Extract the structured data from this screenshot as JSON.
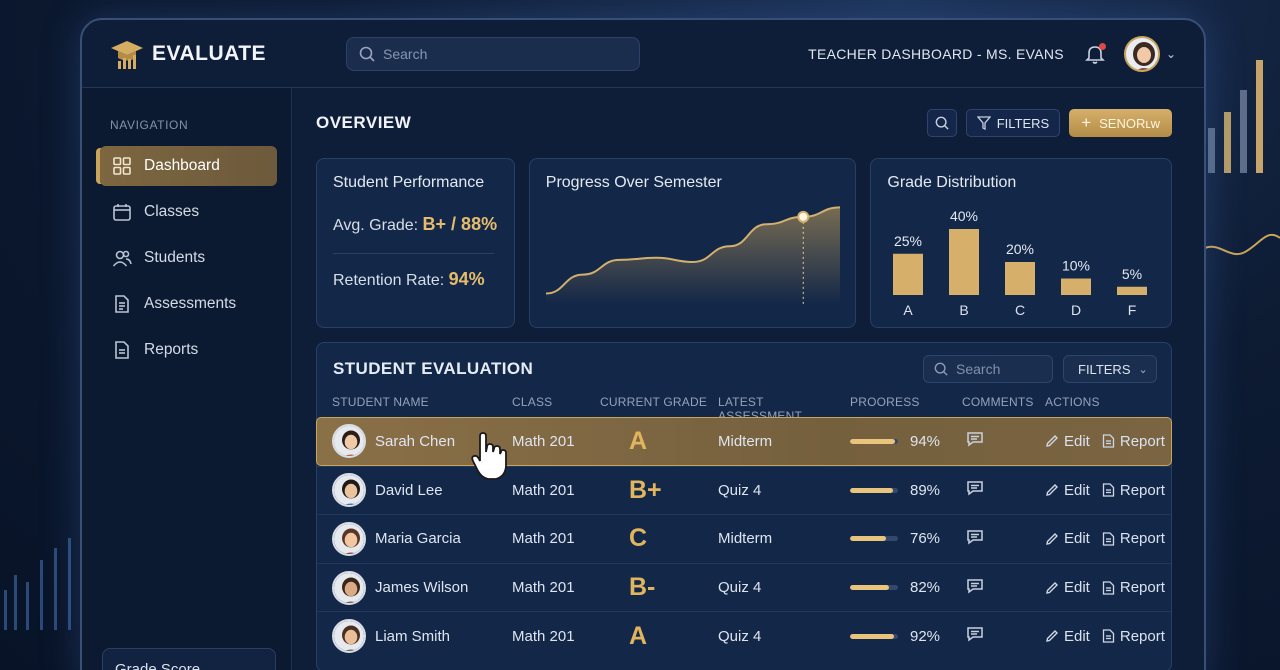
{
  "app": {
    "name": "EVALUATE"
  },
  "header": {
    "search_placeholder": "Search",
    "dashboard_title": "TEACHER DASHBOARD - MS. EVANS",
    "notification_dot": true
  },
  "sidebar": {
    "heading": "NAVIGATION",
    "items": [
      {
        "label": "Dashboard",
        "icon": "grid-icon",
        "active": true
      },
      {
        "label": "Classes",
        "icon": "calendar-icon",
        "active": false
      },
      {
        "label": "Students",
        "icon": "users-icon",
        "active": false
      },
      {
        "label": "Assessments",
        "icon": "document-icon",
        "active": false
      },
      {
        "label": "Reports",
        "icon": "report-icon",
        "active": false
      }
    ],
    "footer_card": "Grade Score"
  },
  "overview": {
    "title": "OVERVIEW",
    "filters_label": "FILTERS",
    "primary_button": "SENORʟᴡ"
  },
  "performance": {
    "title": "Student Performance",
    "avg_label": "Avg. Grade:",
    "avg_value": "B+ / 88%",
    "retention_label": "Retention Rate:",
    "retention_value": "94%"
  },
  "progress": {
    "title": "Progress Over Semester"
  },
  "distribution": {
    "title": "Grade Distribution"
  },
  "chart_data": [
    {
      "type": "area",
      "title": "Progress Over Semester",
      "x": [
        0,
        1,
        2,
        3,
        4,
        5,
        6,
        7,
        8
      ],
      "y": [
        10,
        28,
        42,
        44,
        40,
        55,
        76,
        83,
        92
      ],
      "highlight_index": 7
    },
    {
      "type": "bar",
      "title": "Grade Distribution",
      "categories": [
        "A",
        "B",
        "C",
        "D",
        "F"
      ],
      "values": [
        25,
        40,
        20,
        10,
        5
      ],
      "value_labels": [
        "25%",
        "40%",
        "20%",
        "10%",
        "5%"
      ]
    }
  ],
  "evaluation": {
    "title": "STUDENT EVALUATION",
    "search_placeholder": "Search",
    "filters_label": "FILTERS",
    "columns": [
      "STUDENT NAME",
      "CLASS",
      "CURRENT GRADE",
      "LATEST ASSESSMENT",
      "PROORESS",
      "COMMENTS",
      "ACTIONS"
    ],
    "edit_label": "Edit",
    "report_label": "Report",
    "rows": [
      {
        "name": "Sarah Chen",
        "class": "Math 201",
        "grade": "A",
        "assessment": "Midterm",
        "progress": 94,
        "progress_label": "94%",
        "selected": true
      },
      {
        "name": "David Lee",
        "class": "Math 201",
        "grade": "B+",
        "assessment": "Quiz 4",
        "progress": 89,
        "progress_label": "89%",
        "selected": false
      },
      {
        "name": "Maria Garcia",
        "class": "Math 201",
        "grade": "C",
        "assessment": "Midterm",
        "progress": 76,
        "progress_label": "76%",
        "selected": false
      },
      {
        "name": "James Wilson",
        "class": "Math 201",
        "grade": "B-",
        "assessment": "Quiz 4",
        "progress": 82,
        "progress_label": "82%",
        "selected": false
      },
      {
        "name": "Liam Smith",
        "class": "Math 201",
        "grade": "A",
        "assessment": "Quiz 4",
        "progress": 92,
        "progress_label": "92%",
        "selected": false
      }
    ]
  },
  "colors": {
    "accent": "#c9a45b",
    "bg": "#0f1e38",
    "panel": "#132748",
    "bar": "#d6b06a"
  }
}
